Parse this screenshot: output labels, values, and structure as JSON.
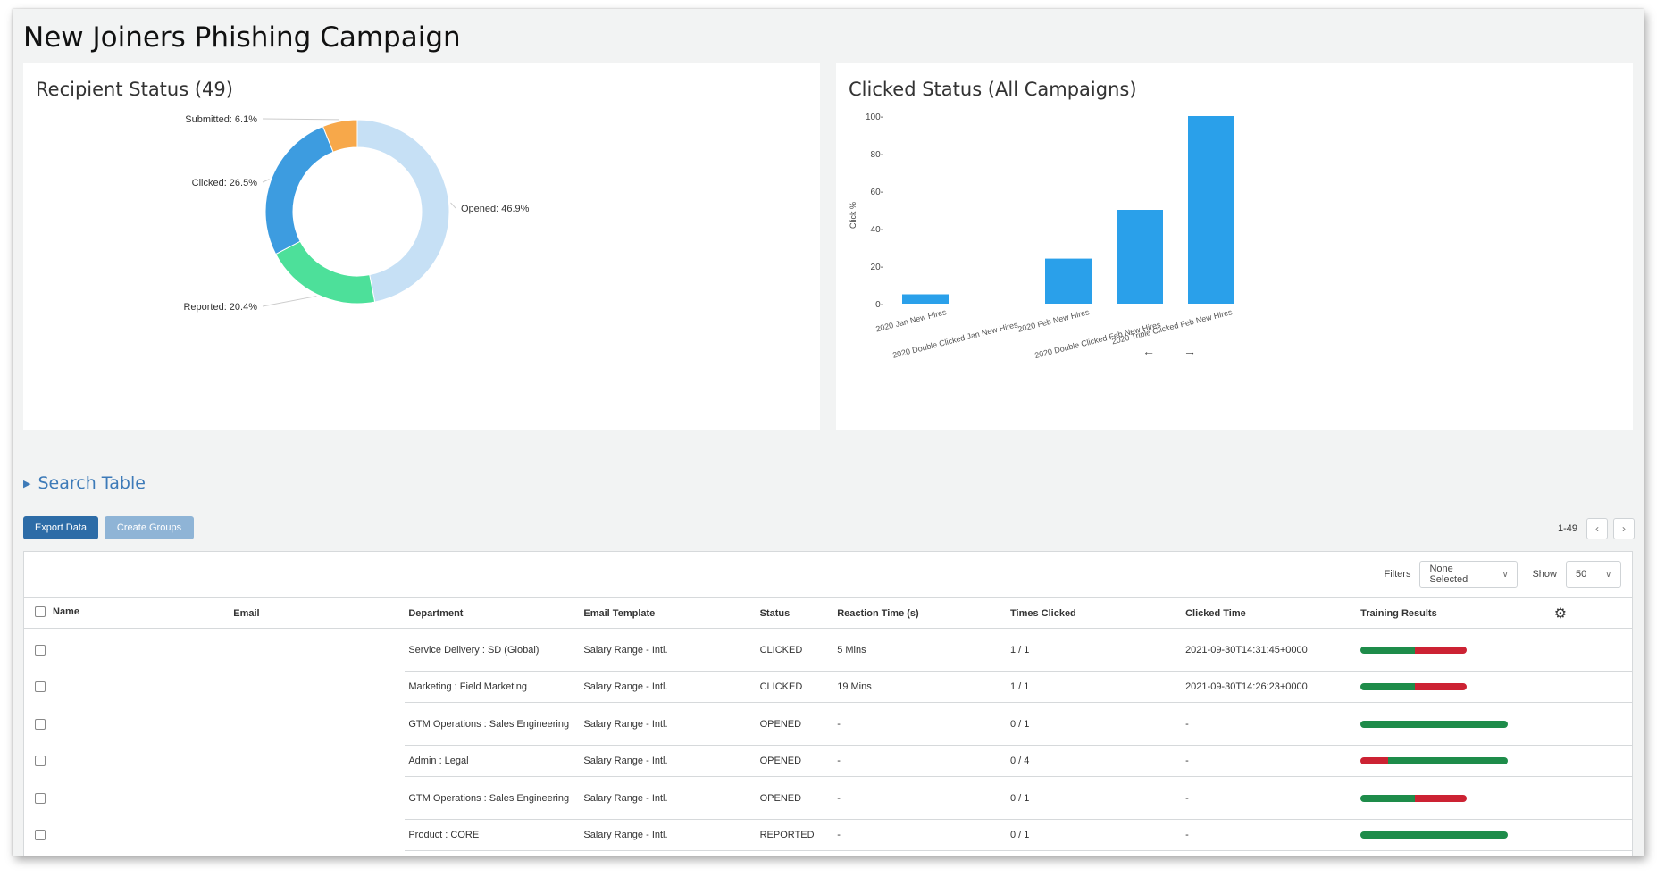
{
  "page": {
    "title": "New Joiners Phishing Campaign"
  },
  "recipient_status": {
    "title": "Recipient Status (49)",
    "slices": [
      {
        "label": "Opened: 46.9%",
        "value": 46.9,
        "color": "#c6e0f5"
      },
      {
        "label": "Reported: 20.4%",
        "value": 20.4,
        "color": "#4de09a"
      },
      {
        "label": "Clicked: 26.5%",
        "value": 26.5,
        "color": "#3d9ce0"
      },
      {
        "label": "Submitted: 6.1%",
        "value": 6.1,
        "color": "#f7a84a"
      }
    ]
  },
  "clicked_status": {
    "title": "Clicked Status (All Campaigns)",
    "ylabel": "Click %",
    "prev_icon": "arrow-left",
    "next_icon": "arrow-right"
  },
  "chart_data": {
    "type": "bar",
    "categories": [
      "2020 Jan New Hires",
      "2020 Double Clicked Jan New Hires",
      "2020 Feb New Hires",
      "2020 Double Clicked Feb New Hires",
      "2020 Triple Clicked Feb New Hires"
    ],
    "values": [
      5,
      0,
      24,
      50,
      100
    ],
    "ylabel": "Click %",
    "ylim": [
      0,
      100
    ],
    "yticks": [
      "0-",
      "20-",
      "40-",
      "60-",
      "80-",
      "100-"
    ],
    "bar_color": "#2aa0ea",
    "grid": false
  },
  "search": {
    "label": "Search Table"
  },
  "buttons": {
    "export": "Export Data",
    "create_groups": "Create Groups"
  },
  "pagination": {
    "range": "1-49",
    "prev": "‹",
    "next": "›"
  },
  "filters": {
    "label": "Filters",
    "value": "None Selected",
    "show_label": "Show",
    "show_value": "50"
  },
  "table": {
    "columns": [
      "Name",
      "Email",
      "Department",
      "Email Template",
      "Status",
      "Reaction Time (s)",
      "Times Clicked",
      "Clicked Time",
      "Training Results"
    ],
    "rows": [
      {
        "department": "Service Delivery : SD (Global)",
        "template": "Salary Range - Intl.",
        "status": "CLICKED",
        "reaction": "5 Mins",
        "times": "1 / 1",
        "clicked_time": "2021-09-30T14:31:45+0000",
        "training": [
          0.37,
          0.35,
          0
        ]
      },
      {
        "department": "Marketing : Field Marketing",
        "template": "Salary Range - Intl.",
        "status": "CLICKED",
        "reaction": "19 Mins",
        "times": "1 / 1",
        "clicked_time": "2021-09-30T14:26:23+0000",
        "training": [
          0.37,
          0.35,
          0
        ]
      },
      {
        "department": "GTM Operations : Sales Engineering",
        "template": "Salary Range - Intl.",
        "status": "OPENED",
        "reaction": "-",
        "times": "0 / 1",
        "clicked_time": "-",
        "training": [
          1.0,
          0,
          0
        ]
      },
      {
        "department": "Admin : Legal",
        "template": "Salary Range - Intl.",
        "status": "OPENED",
        "reaction": "-",
        "times": "0 / 4",
        "clicked_time": "-",
        "training": [
          0.81,
          0,
          0.19
        ]
      },
      {
        "department": "GTM Operations : Sales Engineering",
        "template": "Salary Range - Intl.",
        "status": "OPENED",
        "reaction": "-",
        "times": "0 / 1",
        "clicked_time": "-",
        "training": [
          0.37,
          0.35,
          0
        ]
      },
      {
        "department": "Product : CORE",
        "template": "Salary Range - Intl.",
        "status": "REPORTED",
        "reaction": "-",
        "times": "0 / 1",
        "clicked_time": "-",
        "training": [
          1.0,
          0,
          0
        ]
      }
    ]
  },
  "colors": {
    "accent": "#3d7ab8",
    "pass": "#1e8c4a",
    "fail": "#cc2233"
  }
}
